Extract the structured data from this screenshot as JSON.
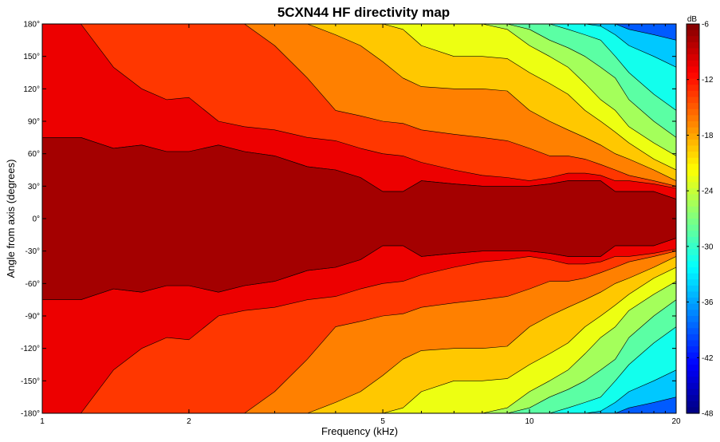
{
  "chart_data": {
    "type": "heatmap",
    "title": "5CXN44 HF directivity map",
    "xlabel": "Frequency (kHz)",
    "ylabel": "Angle from axis (degrees)",
    "x_scale": "log",
    "xlim": [
      1,
      20
    ],
    "ylim": [
      -180,
      180
    ],
    "x_ticks": [
      1,
      2,
      5,
      10,
      20
    ],
    "y_ticks": [
      -180,
      -150,
      -120,
      -90,
      -60,
      -30,
      0,
      30,
      60,
      90,
      120,
      150,
      180
    ],
    "x_tick_labels": [
      "1",
      "2",
      "5",
      "10",
      "20"
    ],
    "y_tick_labels": [
      "-180°",
      "-150°",
      "-120°",
      "-90°",
      "-60°",
      "-30°",
      "0°",
      "30°",
      "60°",
      "90°",
      "120°",
      "150°",
      "180°"
    ],
    "colorbar": {
      "unit_label": "dB",
      "range": [
        -48,
        -6
      ],
      "ticks": [
        -6,
        -12,
        -18,
        -24,
        -30,
        -36,
        -42,
        -48
      ],
      "tick_labels": [
        "-6",
        "-12",
        "-18",
        "-24",
        "-30",
        "-36",
        "-42",
        "-48"
      ],
      "levels": [
        -6,
        -9,
        -12,
        -15,
        -18,
        -21,
        -24,
        -27,
        -30,
        -33,
        -36,
        -39,
        -42,
        -45,
        -48
      ]
    },
    "contour_boundaries": {
      "frequencies_khz": [
        1,
        1.2,
        1.4,
        1.6,
        1.8,
        2,
        2.3,
        2.6,
        3,
        3.5,
        4,
        4.5,
        5,
        5.5,
        6,
        7,
        8,
        9,
        10,
        11,
        12,
        13,
        14,
        15,
        16,
        18,
        20
      ],
      "bands": [
        {
          "level_db": -9,
          "angle_deg": [
            75,
            75,
            65,
            68,
            62,
            62,
            68,
            62,
            58,
            48,
            45,
            38,
            25,
            25,
            35,
            32,
            30,
            30,
            30,
            32,
            35,
            35,
            35,
            25,
            25,
            25,
            18
          ]
        },
        {
          "level_db": -12,
          "angle_deg": [
            180,
            180,
            140,
            120,
            110,
            112,
            90,
            85,
            82,
            75,
            72,
            65,
            60,
            58,
            52,
            45,
            40,
            38,
            35,
            38,
            42,
            42,
            40,
            35,
            35,
            32,
            28
          ]
        },
        {
          "level_db": -15,
          "angle_deg": [
            180,
            180,
            180,
            180,
            180,
            180,
            180,
            180,
            160,
            130,
            100,
            95,
            90,
            88,
            82,
            78,
            75,
            72,
            65,
            58,
            58,
            55,
            50,
            45,
            40,
            35,
            30
          ]
        },
        {
          "level_db": -18,
          "angle_deg": [
            180,
            180,
            180,
            180,
            180,
            180,
            180,
            180,
            180,
            180,
            170,
            160,
            145,
            130,
            122,
            120,
            120,
            118,
            100,
            90,
            82,
            75,
            68,
            60,
            55,
            45,
            35
          ]
        },
        {
          "level_db": -21,
          "angle_deg": [
            180,
            180,
            180,
            180,
            180,
            180,
            180,
            180,
            180,
            180,
            180,
            180,
            180,
            175,
            160,
            150,
            150,
            148,
            135,
            125,
            115,
            100,
            90,
            80,
            70,
            55,
            45
          ]
        },
        {
          "level_db": -24,
          "angle_deg": [
            180,
            180,
            180,
            180,
            180,
            180,
            180,
            180,
            180,
            180,
            180,
            180,
            180,
            180,
            180,
            180,
            180,
            175,
            160,
            150,
            140,
            125,
            110,
            100,
            85,
            70,
            58
          ]
        },
        {
          "level_db": -27,
          "angle_deg": [
            180,
            180,
            180,
            180,
            180,
            180,
            180,
            180,
            180,
            180,
            180,
            180,
            180,
            180,
            180,
            180,
            180,
            180,
            175,
            165,
            158,
            150,
            140,
            130,
            110,
            90,
            75
          ]
        },
        {
          "level_db": -30,
          "angle_deg": [
            180,
            180,
            180,
            180,
            180,
            180,
            180,
            180,
            180,
            180,
            180,
            180,
            180,
            180,
            180,
            180,
            180,
            180,
            180,
            180,
            175,
            170,
            165,
            150,
            135,
            115,
            100
          ]
        },
        {
          "level_db": -33,
          "angle_deg": [
            180,
            180,
            180,
            180,
            180,
            180,
            180,
            180,
            180,
            180,
            180,
            180,
            180,
            180,
            180,
            180,
            180,
            180,
            180,
            180,
            180,
            180,
            178,
            170,
            160,
            150,
            140
          ]
        },
        {
          "level_db": -36,
          "angle_deg": [
            180,
            180,
            180,
            180,
            180,
            180,
            180,
            180,
            180,
            180,
            180,
            180,
            180,
            180,
            180,
            180,
            180,
            180,
            180,
            180,
            180,
            180,
            180,
            180,
            175,
            170,
            165
          ]
        }
      ]
    }
  }
}
